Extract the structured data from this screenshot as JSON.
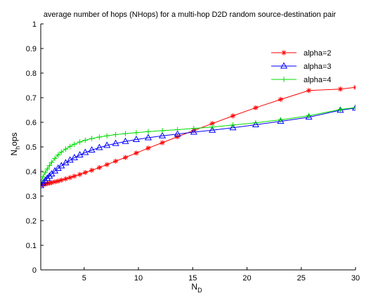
{
  "chart_data": {
    "type": "line",
    "title": "average number of hops (NHops) for a multi-hop D2D random source-destination pair",
    "xlabel": "N",
    "xlabel_sub": "D",
    "ylabel": "N",
    "ylabel_sub": "h",
    "ylabel_suffix": "ops",
    "xlim": [
      1,
      30
    ],
    "ylim": [
      0,
      1
    ],
    "xticks": [
      5,
      10,
      15,
      20,
      25,
      30
    ],
    "yticks": [
      0,
      0.1,
      0.2,
      0.3,
      0.4,
      0.5,
      0.6,
      0.7,
      0.8,
      0.9,
      1
    ],
    "grid": false,
    "legend_position": "top-right",
    "series": [
      {
        "name": "alpha=2",
        "color": "#ff0000",
        "marker": "asterisk",
        "x": [
          1,
          1.2,
          1.4,
          1.6,
          1.8,
          2.0,
          2.3,
          2.6,
          2.9,
          3.3,
          3.7,
          4.1,
          4.6,
          5.1,
          5.7,
          6.4,
          7.1,
          7.9,
          8.8,
          9.8,
          10.9,
          12.2,
          13.6,
          15.1,
          16.8,
          18.7,
          20.8,
          23.1,
          25.7,
          28.6,
          30
        ],
        "y": [
          0.345,
          0.347,
          0.349,
          0.351,
          0.353,
          0.355,
          0.358,
          0.361,
          0.365,
          0.37,
          0.375,
          0.381,
          0.388,
          0.396,
          0.405,
          0.416,
          0.428,
          0.442,
          0.457,
          0.475,
          0.495,
          0.517,
          0.541,
          0.567,
          0.595,
          0.626,
          0.659,
          0.693,
          0.729,
          0.735,
          0.742
        ]
      },
      {
        "name": "alpha=3",
        "color": "#0000ff",
        "marker": "triangle",
        "x": [
          1,
          1.2,
          1.4,
          1.6,
          1.8,
          2.0,
          2.3,
          2.6,
          2.9,
          3.3,
          3.7,
          4.1,
          4.6,
          5.1,
          5.7,
          6.4,
          7.1,
          7.9,
          8.8,
          9.8,
          10.9,
          12.2,
          13.6,
          15.1,
          16.8,
          18.7,
          20.8,
          23.1,
          25.7,
          28.6,
          30
        ],
        "y": [
          0.343,
          0.352,
          0.362,
          0.372,
          0.381,
          0.39,
          0.402,
          0.413,
          0.423,
          0.435,
          0.446,
          0.456,
          0.467,
          0.477,
          0.487,
          0.497,
          0.506,
          0.514,
          0.522,
          0.53,
          0.537,
          0.545,
          0.552,
          0.56,
          0.568,
          0.578,
          0.59,
          0.604,
          0.621,
          0.649,
          0.658
        ]
      },
      {
        "name": "alpha=4",
        "color": "#00dd00",
        "marker": "plus",
        "x": [
          1,
          1.2,
          1.4,
          1.6,
          1.8,
          2.0,
          2.3,
          2.6,
          2.9,
          3.3,
          3.7,
          4.1,
          4.6,
          5.1,
          5.7,
          6.4,
          7.1,
          7.9,
          8.8,
          9.8,
          10.9,
          12.2,
          13.6,
          15.1,
          16.8,
          18.7,
          20.8,
          23.1,
          25.7,
          28.6,
          30
        ],
        "y": [
          0.36,
          0.378,
          0.395,
          0.41,
          0.424,
          0.437,
          0.453,
          0.467,
          0.479,
          0.491,
          0.502,
          0.511,
          0.52,
          0.527,
          0.534,
          0.54,
          0.545,
          0.55,
          0.554,
          0.558,
          0.562,
          0.566,
          0.57,
          0.575,
          0.581,
          0.589,
          0.598,
          0.61,
          0.627,
          0.652,
          0.66
        ]
      }
    ]
  }
}
